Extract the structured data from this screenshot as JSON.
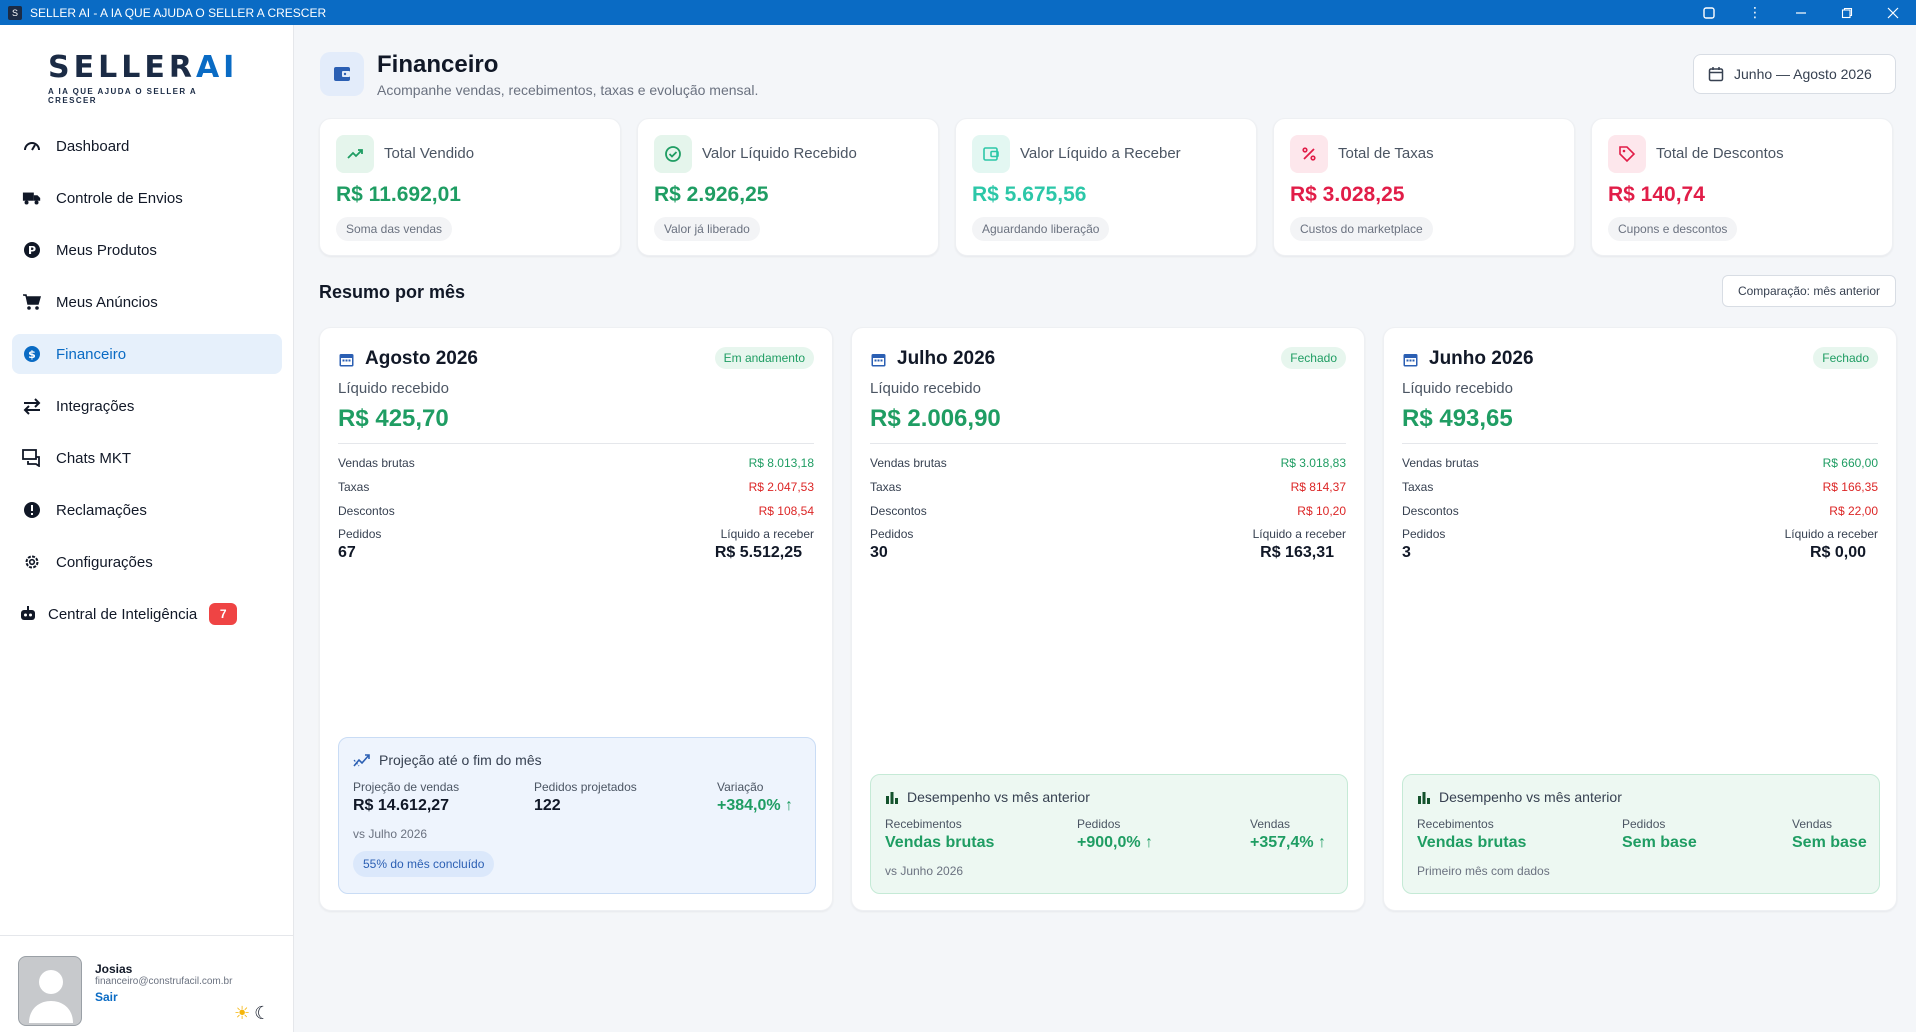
{
  "window": {
    "title": "SELLER AI - A IA QUE AJUDA O SELLER A CRESCER",
    "icon_letter": "S"
  },
  "brand": {
    "name_main": "SELLER",
    "name_accent": "AI",
    "tagline": "A IA QUE AJUDA O SELLER A CRESCER"
  },
  "sidebar": {
    "items": [
      {
        "label": "Dashboard",
        "icon": "speedometer-icon"
      },
      {
        "label": "Controle de Envios",
        "icon": "truck-icon"
      },
      {
        "label": "Meus Produtos",
        "icon": "p-circle-icon"
      },
      {
        "label": "Meus Anúncios",
        "icon": "cart-icon"
      },
      {
        "label": "Financeiro",
        "icon": "dollar-circle-icon",
        "active": true
      },
      {
        "label": "Integrações",
        "icon": "arrows-swap-icon"
      },
      {
        "label": "Chats MKT",
        "icon": "chat-icon"
      },
      {
        "label": "Reclamações",
        "icon": "alert-circle-icon"
      },
      {
        "label": "Configurações",
        "icon": "gear-icon"
      },
      {
        "label": "Central de Inteligência",
        "icon": "robot-icon",
        "badge": "7"
      }
    ],
    "user": {
      "name": "Josias",
      "email": "financeiro@construfacil.com.br",
      "logout": "Sair"
    }
  },
  "header": {
    "title": "Financeiro",
    "subtitle": "Acompanhe vendas, recebimentos, taxas e evolução mensal.",
    "period": "Junho — Agosto 2026"
  },
  "kpis": [
    {
      "label": "Total Vendido",
      "value": "R$ 11.692,01",
      "note": "Soma das vendas",
      "color": "#1f9d63",
      "icon": "trending-up-icon"
    },
    {
      "label": "Valor Líquido Recebido",
      "value": "R$ 2.926,25",
      "note": "Valor já liberado",
      "color": "#1f9d63",
      "icon": "check-circle-icon"
    },
    {
      "label": "Valor Líquido a Receber",
      "value": "R$ 5.675,56",
      "note": "Aguardando liberação",
      "color": "#2cc7a8",
      "icon": "wallet-icon"
    },
    {
      "label": "Total de Taxas",
      "value": "R$ 3.028,25",
      "note": "Custos do marketplace",
      "color": "#e11d48",
      "icon": "percent-icon"
    },
    {
      "label": "Total de Descontos",
      "value": "R$ 140,74",
      "note": "Cupons e descontos",
      "color": "#e11d48",
      "icon": "tag-icon"
    }
  ],
  "summary": {
    "title": "Resumo por mês",
    "compare_label": "Comparação: mês anterior"
  },
  "months": [
    {
      "name": "Agosto 2026",
      "status": "Em andamento",
      "liquid_label": "Líquido recebido",
      "liquid_value": "R$ 425,70",
      "gross_label": "Vendas brutas",
      "gross_value": "R$ 8.013,18",
      "fees_label": "Taxas",
      "fees_value": "R$ 2.047,53",
      "disc_label": "Descontos",
      "disc_value": "R$ 108,54",
      "orders_label": "Pedidos",
      "orders_value": "67",
      "recv_label": "Líquido a receber",
      "recv_value": "R$ 5.512,25",
      "projection": {
        "title": "Projeção até o fim do mês",
        "sales_label": "Projeção de vendas",
        "sales_value": "R$ 14.612,27",
        "orders_label": "Pedidos projetados",
        "orders_value": "122",
        "var_label": "Variação",
        "var_value": "+384,0% ↑",
        "vs": "vs Julho 2026",
        "progress_label": "55% do mês concluído",
        "progress": 0.55
      }
    },
    {
      "name": "Julho 2026",
      "status": "Fechado",
      "liquid_label": "Líquido recebido",
      "liquid_value": "R$ 2.006,90",
      "gross_label": "Vendas brutas",
      "gross_value": "R$ 3.018,83",
      "fees_label": "Taxas",
      "fees_value": "R$ 814,37",
      "disc_label": "Descontos",
      "disc_value": "R$ 10,20",
      "orders_label": "Pedidos",
      "orders_value": "30",
      "recv_label": "Líquido a receber",
      "recv_value": "R$ 163,31",
      "performance": {
        "title": "Desempenho vs mês anterior",
        "c1_label": "Recebimentos",
        "c1_value": "Vendas brutas",
        "c2_label": "Pedidos",
        "c2_value": "+900,0% ↑",
        "c3_label": "Vendas",
        "c3_value": "+357,4% ↑",
        "foot": "vs Junho 2026"
      }
    },
    {
      "name": "Junho 2026",
      "status": "Fechado",
      "liquid_label": "Líquido recebido",
      "liquid_value": "R$ 493,65",
      "gross_label": "Vendas brutas",
      "gross_value": "R$ 660,00",
      "fees_label": "Taxas",
      "fees_value": "R$ 166,35",
      "disc_label": "Descontos",
      "disc_value": "R$ 22,00",
      "orders_label": "Pedidos",
      "orders_value": "3",
      "recv_label": "Líquido a receber",
      "recv_value": "R$ 0,00",
      "performance": {
        "title": "Desempenho vs mês anterior",
        "c1_label": "Recebimentos",
        "c1_value": "Vendas brutas",
        "c2_label": "Pedidos",
        "c2_value": "Sem base",
        "c3_label": "Vendas",
        "c3_value": "Sem base",
        "foot": "Primeiro mês com dados"
      }
    }
  ]
}
